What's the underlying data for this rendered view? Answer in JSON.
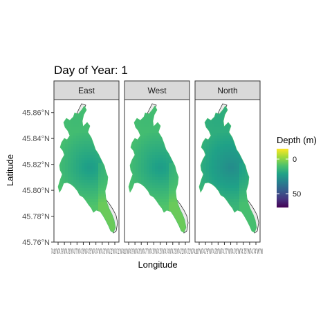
{
  "chart_data": {
    "type": "heatmap",
    "title": "Day of Year: 1",
    "xlabel": "Longitude",
    "ylabel": "Latitude",
    "panels": [
      {
        "name": "East",
        "depth_skew": 0.0
      },
      {
        "name": "West",
        "depth_skew": 0.0
      },
      {
        "name": "North",
        "depth_skew": 0.12
      }
    ],
    "ylim": [
      45.76,
      45.87
    ],
    "y_ticks": [
      "45.76°N",
      "45.78°N",
      "45.80°N",
      "45.82°N",
      "45.84°N",
      "45.86°N"
    ],
    "x_tick_labels": [
      "74.80°W",
      "74.79°W",
      "74.78°W",
      "74.77°W",
      "74.76°W",
      "74.75°W",
      "74.74°W",
      "74.73°W",
      "74.72°W",
      "74.71°W"
    ],
    "x_tick_label_overlap": {
      "panel1": "74.80°W74.79°W74.78°W74.77°W74.76°W74.75°W74.74°W74.73°W74.72°W74.71°W",
      "panel2": "74.80°W74.79°W74.78°W74.77°W74.76°W74.75°W74.74°W74.73°W74.72°W74.71°W",
      "panel3": "74.80°W74.79°W74.78°W74.77°W74.76°W74.75°W74.74°W°W"
    },
    "legend": {
      "title": "Depth (m)",
      "position": "right",
      "scale": "viridis (reversed)",
      "ticks": [
        {
          "value": 0,
          "label": "0"
        },
        {
          "value": 50,
          "label": "50"
        }
      ],
      "range": [
        -15,
        70
      ]
    },
    "colors": {
      "strip_fill": "#d9d9d9",
      "panel_border": "#333333",
      "land_fill": "#ebebeb",
      "outline": "#333333",
      "viridis": [
        "#fde725",
        "#a0da39",
        "#4ac16d",
        "#1fa187",
        "#277f8e",
        "#365c8d",
        "#46327e",
        "#440154"
      ]
    }
  }
}
